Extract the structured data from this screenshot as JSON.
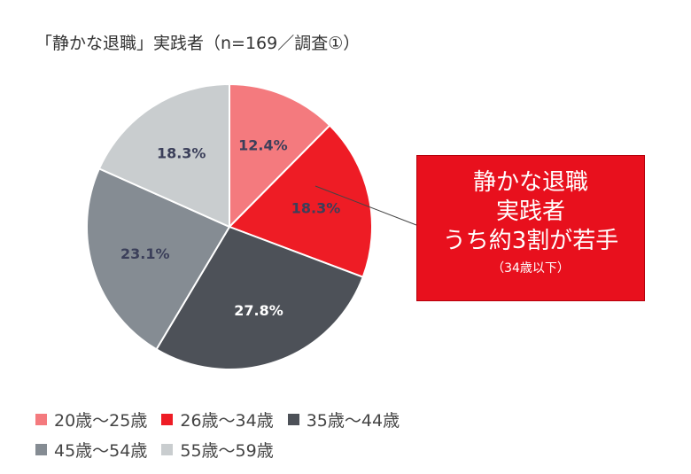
{
  "chart_data": {
    "type": "pie",
    "title": "「静かな退職」実践者（n=169／調査①）",
    "slices": [
      {
        "name": "20歳〜25歳",
        "value": 12.4,
        "label": "12.4%",
        "color": "#f47a7e",
        "label_color": "#3b3f5a"
      },
      {
        "name": "26歳〜34歳",
        "value": 18.3,
        "label": "18.3%",
        "color": "#ee1c25",
        "label_color": "#3b3f5a"
      },
      {
        "name": "35歳〜44歳",
        "value": 27.8,
        "label": "27.8%",
        "color": "#4d5158",
        "label_color": "#ffffff"
      },
      {
        "name": "45歳〜54歳",
        "value": 23.1,
        "label": "23.1%",
        "color": "#858c93",
        "label_color": "#3b3f5a"
      },
      {
        "name": "55歳〜59歳",
        "value": 18.3,
        "label": "18.3%",
        "color": "#c9cdcf",
        "label_color": "#3b3f5a"
      }
    ],
    "legend_position": "bottom-left",
    "start": "top, clockwise"
  },
  "callout": {
    "lines": [
      "静かな退職",
      "実践者",
      "うち約3割が若手"
    ],
    "sub": "（34歳以下）",
    "background": "#e8101d"
  }
}
